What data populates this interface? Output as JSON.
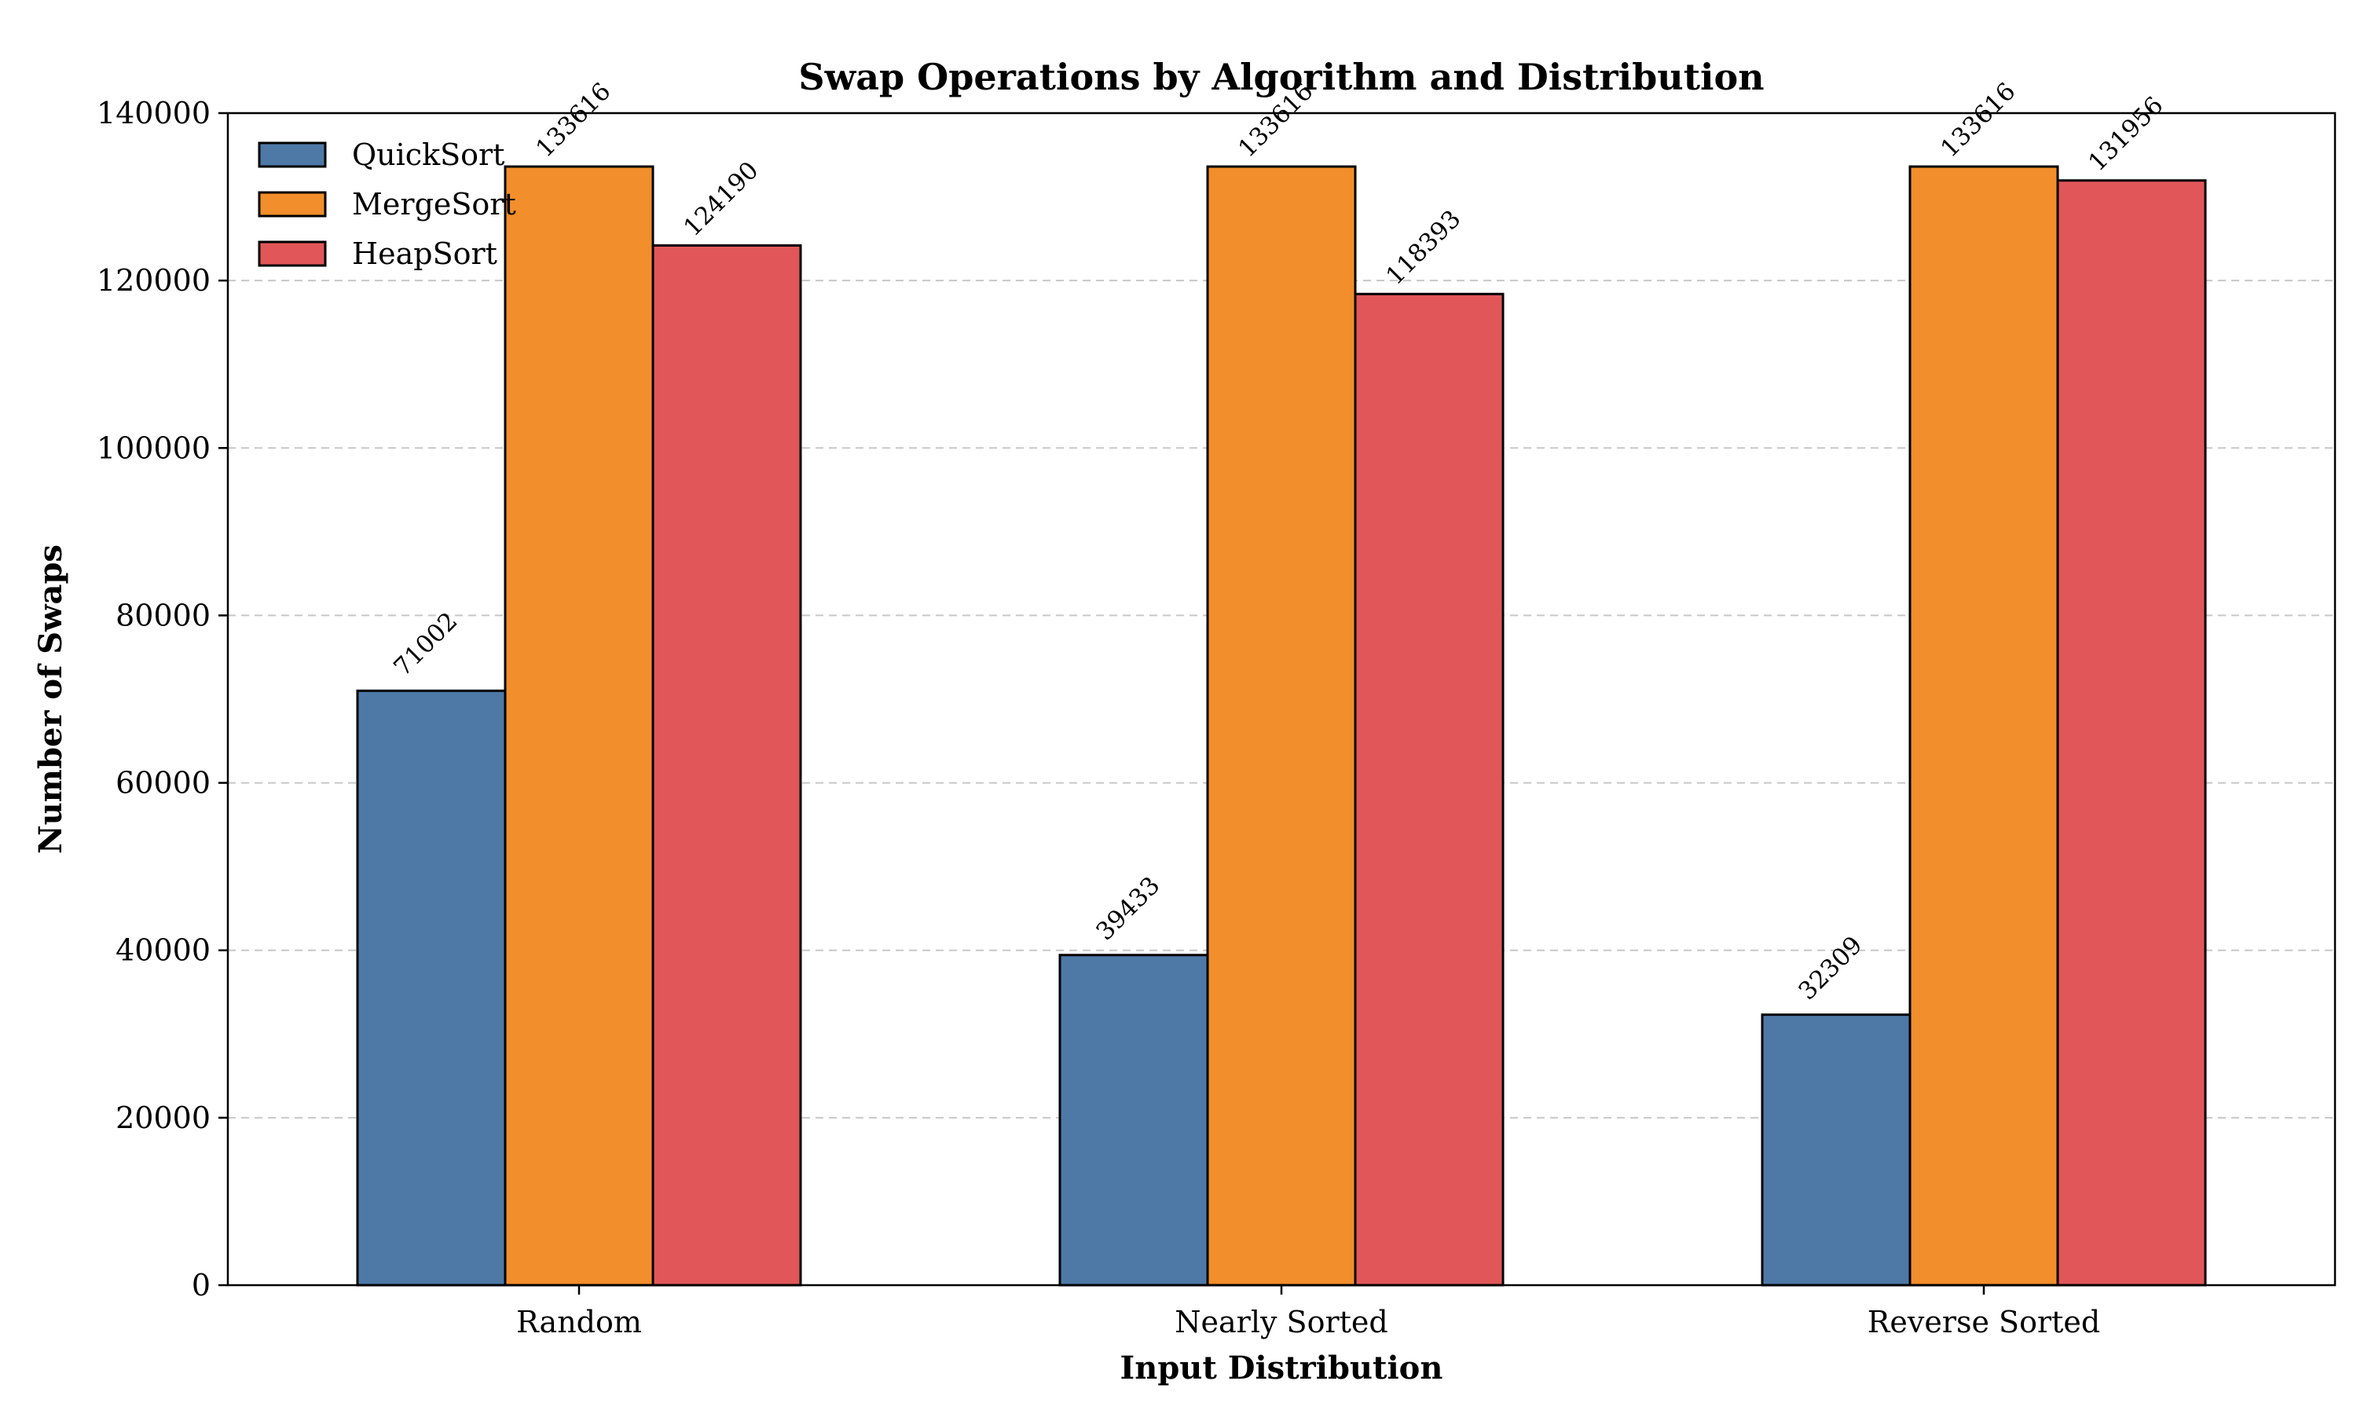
{
  "chart_data": {
    "type": "bar",
    "title": "Swap Operations by Algorithm and Distribution",
    "xlabel": "Input Distribution",
    "ylabel": "Number of Swaps",
    "categories": [
      "Random",
      "Nearly Sorted",
      "Reverse Sorted"
    ],
    "series": [
      {
        "name": "QuickSort",
        "values": [
          71002,
          39433,
          32309
        ],
        "color": "#4e79a7"
      },
      {
        "name": "MergeSort",
        "values": [
          133616,
          133616,
          133616
        ],
        "color": "#f28e2b"
      },
      {
        "name": "HeapSort",
        "values": [
          124190,
          118393,
          131956
        ],
        "color": "#e15759"
      }
    ],
    "ylim": [
      0,
      140000
    ],
    "yticks": [
      0,
      20000,
      40000,
      60000,
      80000,
      100000,
      120000,
      140000
    ],
    "grid": true,
    "grid_axis": "y",
    "legend_position": "top-left"
  }
}
